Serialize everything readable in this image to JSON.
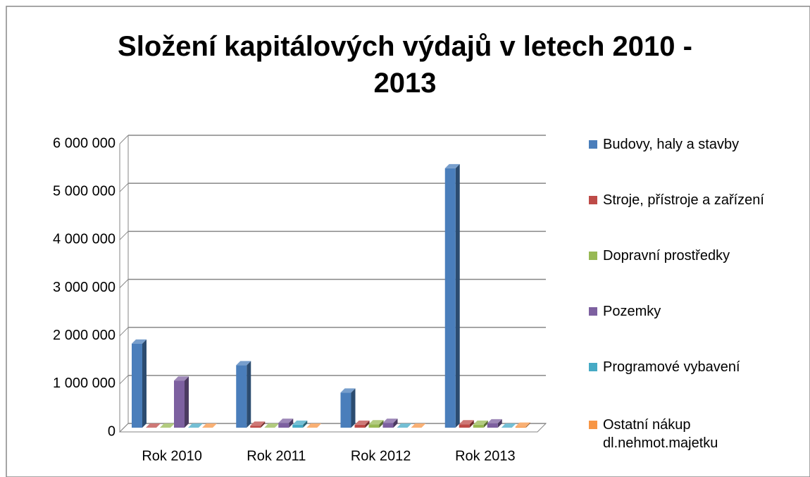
{
  "chart_data": {
    "type": "bar3d",
    "title": "Složení kapitálových výdajů v letech 2010 - 2013",
    "categories": [
      "Rok 2010",
      "Rok 2011",
      "Rok 2012",
      "Rok 2013"
    ],
    "series": [
      {
        "name": "Budovy, haly a stavby",
        "color": "#4a7ebb",
        "values": [
          1750000,
          1300000,
          730000,
          5400000
        ]
      },
      {
        "name": "Stroje, přístroje a zařízení",
        "color": "#be4b48",
        "values": [
          0,
          40000,
          60000,
          70000
        ]
      },
      {
        "name": "Dopravní prostředky",
        "color": "#98b954",
        "values": [
          0,
          0,
          70000,
          60000
        ]
      },
      {
        "name": "Pozemky",
        "color": "#7d60a0",
        "values": [
          980000,
          100000,
          100000,
          90000
        ]
      },
      {
        "name": "Programové vybavení",
        "color": "#46aac5",
        "values": [
          0,
          60000,
          0,
          0
        ]
      },
      {
        "name": "Ostatní nákup dl.nehmot.majetku",
        "color": "#f79646",
        "values": [
          0,
          0,
          0,
          20000
        ]
      }
    ],
    "ylim": [
      0,
      6000000
    ],
    "yticks": [
      0,
      {
        "value": 1000000,
        "label": "1 000 000"
      },
      {
        "value": 2000000,
        "label": "2 000 000"
      },
      {
        "value": 3000000,
        "label": "3 000 000"
      },
      {
        "value": 4000000,
        "label": "4 000 000"
      },
      {
        "value": 5000000,
        "label": "5 000 000"
      },
      {
        "value": 6000000,
        "label": "6 000 000"
      }
    ],
    "grid": true,
    "legend": "right"
  }
}
